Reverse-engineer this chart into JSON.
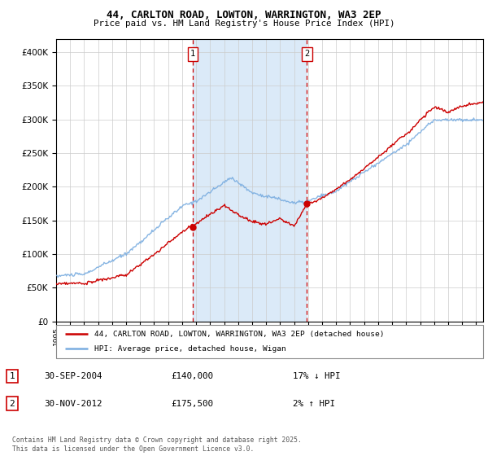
{
  "title_line1": "44, CARLTON ROAD, LOWTON, WARRINGTON, WA3 2EP",
  "title_line2": "Price paid vs. HM Land Registry's House Price Index (HPI)",
  "legend_line1": "44, CARLTON ROAD, LOWTON, WARRINGTON, WA3 2EP (detached house)",
  "legend_line2": "HPI: Average price, detached house, Wigan",
  "annotation1_date": "30-SEP-2004",
  "annotation1_price": "£140,000",
  "annotation1_hpi": "17% ↓ HPI",
  "annotation2_date": "30-NOV-2012",
  "annotation2_price": "£175,500",
  "annotation2_hpi": "2% ↑ HPI",
  "footer": "Contains HM Land Registry data © Crown copyright and database right 2025.\nThis data is licensed under the Open Government Licence v3.0.",
  "red_color": "#cc0000",
  "blue_color": "#7aade0",
  "vline_color": "#cc0000",
  "shading_color": "#dbeaf8",
  "background_color": "#ffffff",
  "ylim": [
    0,
    420000
  ],
  "yticks": [
    0,
    50000,
    100000,
    150000,
    200000,
    250000,
    300000,
    350000,
    400000
  ],
  "marker1_x": 2004.75,
  "marker1_y": 140000,
  "marker2_x": 2012.917,
  "marker2_y": 175500,
  "vline1_x": 2004.75,
  "vline2_x": 2012.917,
  "xmin": 1995,
  "xmax": 2025.5
}
